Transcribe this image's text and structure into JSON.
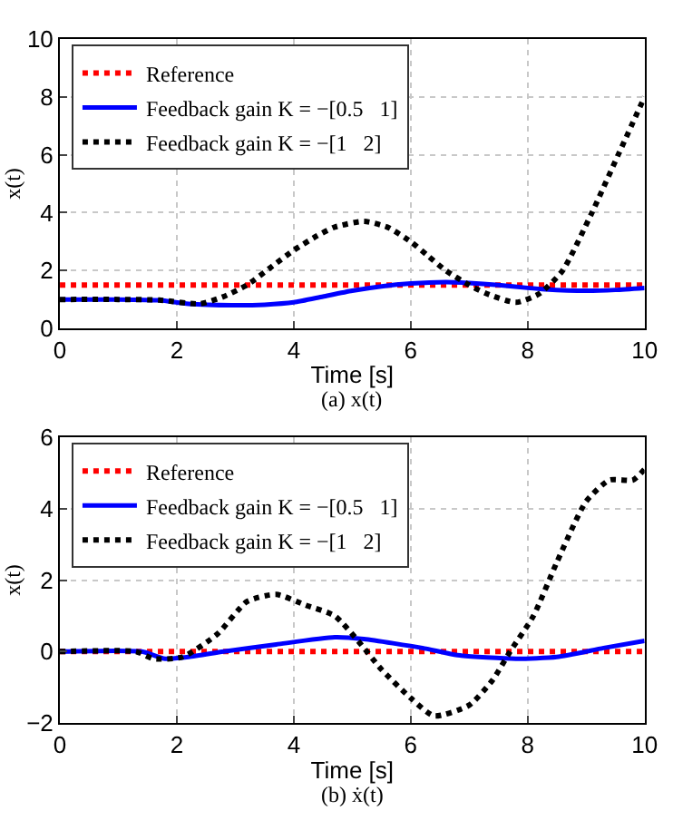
{
  "chart_data": [
    {
      "type": "line",
      "xlabel": "Time [s]",
      "ylabel": "x(t)",
      "xlim": [
        0,
        10
      ],
      "xticks": [
        0,
        2,
        4,
        6,
        8,
        10
      ],
      "ylim": [
        0,
        10
      ],
      "yticks": [
        0,
        2,
        4,
        6,
        8,
        10
      ],
      "grid": true,
      "legend": "top left",
      "marker": "none",
      "annotations": [
        "(a) x(t)"
      ],
      "series": [
        {
          "name": "Reference",
          "color": "#ff0000",
          "line_style": "dotted",
          "x": [
            0,
            10
          ],
          "values": [
            1.5,
            1.5
          ]
        },
        {
          "name": "Feedback gain K = −[0.5   1]",
          "color": "#0000ff",
          "line_style": "solid",
          "x": [
            0,
            1,
            1.7,
            2.2,
            3,
            3.5,
            4,
            4.5,
            5,
            5.5,
            6,
            6.6,
            7,
            7.5,
            8,
            8.3,
            9,
            9.5,
            10
          ],
          "values": [
            1.0,
            1.0,
            0.97,
            0.85,
            0.8,
            0.82,
            0.9,
            1.1,
            1.3,
            1.45,
            1.55,
            1.6,
            1.57,
            1.5,
            1.4,
            1.35,
            1.3,
            1.33,
            1.4
          ]
        },
        {
          "name": "Feedback gain K = −[1   2]",
          "color": "#000000",
          "line_style": "dotted",
          "x": [
            0,
            1,
            1.7,
            2.4,
            2.8,
            3.2,
            3.6,
            4.0,
            4.4,
            4.7,
            5.2,
            5.6,
            6.0,
            6.3,
            6.6,
            7.0,
            7.3,
            7.8,
            8.2,
            8.6,
            9.1,
            9.55,
            10
          ],
          "values": [
            1.0,
            1.0,
            0.98,
            0.85,
            1.1,
            1.5,
            2.1,
            2.7,
            3.2,
            3.5,
            3.7,
            3.5,
            3.0,
            2.5,
            2.0,
            1.5,
            1.2,
            0.9,
            1.2,
            2.0,
            4.0,
            6.0,
            8.0
          ]
        }
      ]
    },
    {
      "type": "line",
      "xlabel": "Time [s]",
      "ylabel": "x(t)",
      "xlim": [
        0,
        10
      ],
      "xticks": [
        0,
        2,
        4,
        6,
        8,
        10
      ],
      "ylim": [
        -2,
        6
      ],
      "yticks": [
        {
          "value": -2,
          "label": "−2"
        },
        0,
        2,
        4,
        6
      ],
      "grid": true,
      "legend": "top left",
      "marker": "none",
      "annotations": [
        "(b) ẋ(t)"
      ],
      "series": [
        {
          "name": "Reference",
          "color": "#ff0000",
          "line_style": "dotted",
          "x": [
            0,
            10
          ],
          "values": [
            0,
            0
          ]
        },
        {
          "name": "Feedback gain K = −[0.5   1]",
          "color": "#0000ff",
          "line_style": "solid",
          "x": [
            0,
            1.4,
            1.8,
            2.2,
            2.8,
            3.7,
            4.7,
            5.2,
            6.2,
            6.8,
            7.8,
            8.5,
            9.3,
            10
          ],
          "values": [
            0,
            0,
            -0.2,
            -0.15,
            0,
            0.2,
            0.4,
            0.35,
            0.1,
            -0.1,
            -0.2,
            -0.15,
            0.1,
            0.3
          ]
        },
        {
          "name": "Feedback gain K = −[1   2]",
          "color": "#000000",
          "line_style": "dotted",
          "x": [
            0,
            1.3,
            1.6,
            2.1,
            2.7,
            3.2,
            3.7,
            4.2,
            4.7,
            5.1,
            5.5,
            6.0,
            6.4,
            7.0,
            7.4,
            7.7,
            8.1,
            8.5,
            9.0,
            9.4,
            9.8,
            10
          ],
          "values": [
            0,
            0,
            -0.2,
            -0.15,
            0.5,
            1.4,
            1.6,
            1.3,
            1.0,
            0.3,
            -0.5,
            -1.3,
            -1.8,
            -1.5,
            -0.8,
            0,
            1.0,
            2.5,
            4.2,
            4.8,
            4.8,
            5.1
          ]
        }
      ]
    }
  ]
}
